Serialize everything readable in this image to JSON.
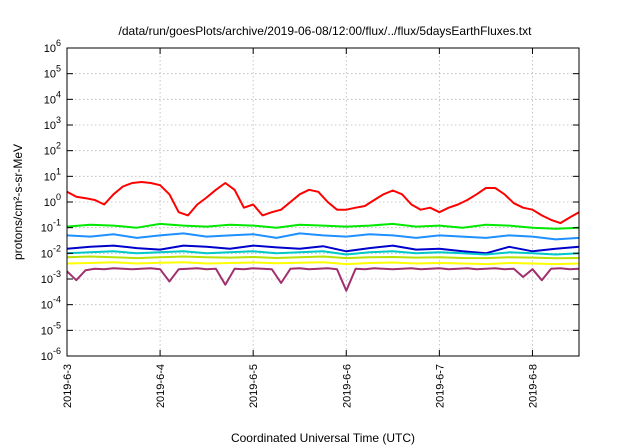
{
  "chart_data": {
    "type": "line",
    "title": "/data/run/goesPlots/archive/2019-06-08/12:00/flux/../flux/5daysEarthFluxes.txt",
    "xlabel": "Coordinated Universal Time (UTC)",
    "ylabel": "protons/cm²-s-sr-MeV",
    "yscale": "log",
    "ylim_exp": [
      -6,
      6
    ],
    "xlim": [
      0,
      5.5
    ],
    "x_ticks": [
      {
        "x": 0,
        "label": "2019-6-3"
      },
      {
        "x": 1,
        "label": "2019-6-4"
      },
      {
        "x": 2,
        "label": "2019-6-5"
      },
      {
        "x": 3,
        "label": "2019-6-6"
      },
      {
        "x": 4,
        "label": "2019-6-7"
      },
      {
        "x": 5,
        "label": "2019-6-8"
      }
    ],
    "grid": true,
    "series": [
      {
        "color": "#ff0000",
        "x": [
          0,
          0.1,
          0.2,
          0.3,
          0.4,
          0.5,
          0.6,
          0.7,
          0.8,
          0.9,
          1.0,
          1.1,
          1.2,
          1.3,
          1.4,
          1.5,
          1.6,
          1.7,
          1.8,
          1.9,
          2.0,
          2.1,
          2.2,
          2.3,
          2.4,
          2.5,
          2.6,
          2.7,
          2.8,
          2.9,
          3.0,
          3.1,
          3.2,
          3.3,
          3.4,
          3.5,
          3.6,
          3.7,
          3.8,
          3.9,
          4.0,
          4.1,
          4.2,
          4.3,
          4.4,
          4.5,
          4.6,
          4.7,
          4.8,
          4.9,
          5.0,
          5.1,
          5.2,
          5.3,
          5.4,
          5.5
        ],
        "y": [
          2.5,
          1.6,
          1.4,
          1.2,
          0.8,
          2.0,
          4.0,
          5.5,
          6.0,
          5.5,
          4.5,
          2.0,
          0.4,
          0.3,
          0.8,
          1.5,
          3.0,
          5.5,
          3.0,
          0.6,
          0.8,
          0.3,
          0.4,
          0.5,
          1.0,
          2.0,
          3.0,
          2.5,
          1.0,
          0.5,
          0.5,
          0.6,
          0.7,
          1.2,
          2.0,
          2.8,
          2.0,
          0.8,
          0.5,
          0.6,
          0.4,
          0.6,
          0.8,
          1.2,
          2.0,
          3.5,
          3.5,
          2.0,
          0.9,
          0.6,
          0.5,
          0.3,
          0.2,
          0.15,
          0.25,
          0.4
        ]
      },
      {
        "color": "#00e800",
        "x": [
          0,
          0.25,
          0.5,
          0.75,
          1.0,
          1.25,
          1.5,
          1.75,
          2.0,
          2.25,
          2.5,
          2.75,
          3.0,
          3.25,
          3.5,
          3.75,
          4.0,
          4.25,
          4.5,
          4.75,
          5.0,
          5.25,
          5.5
        ],
        "y": [
          0.11,
          0.13,
          0.12,
          0.1,
          0.14,
          0.12,
          0.11,
          0.13,
          0.12,
          0.1,
          0.13,
          0.12,
          0.11,
          0.12,
          0.14,
          0.11,
          0.12,
          0.1,
          0.13,
          0.12,
          0.1,
          0.09,
          0.1
        ]
      },
      {
        "color": "#1e90ff",
        "x": [
          0,
          0.25,
          0.5,
          0.75,
          1.0,
          1.25,
          1.5,
          1.75,
          2.0,
          2.25,
          2.5,
          2.75,
          3.0,
          3.25,
          3.5,
          3.75,
          4.0,
          4.25,
          4.5,
          4.75,
          5.0,
          5.25,
          5.5
        ],
        "y": [
          0.05,
          0.045,
          0.055,
          0.04,
          0.05,
          0.06,
          0.045,
          0.05,
          0.055,
          0.04,
          0.06,
          0.05,
          0.045,
          0.055,
          0.05,
          0.04,
          0.05,
          0.045,
          0.04,
          0.05,
          0.045,
          0.035,
          0.04
        ]
      },
      {
        "color": "#0000cd",
        "x": [
          0,
          0.25,
          0.5,
          0.75,
          1.0,
          1.25,
          1.5,
          1.75,
          2.0,
          2.25,
          2.5,
          2.75,
          3.0,
          3.25,
          3.5,
          3.75,
          4.0,
          4.25,
          4.5,
          4.75,
          5.0,
          5.25,
          5.5
        ],
        "y": [
          0.015,
          0.018,
          0.02,
          0.016,
          0.014,
          0.02,
          0.018,
          0.015,
          0.02,
          0.017,
          0.015,
          0.019,
          0.012,
          0.016,
          0.02,
          0.014,
          0.015,
          0.012,
          0.01,
          0.018,
          0.012,
          0.015,
          0.018
        ]
      },
      {
        "color": "#00c8c8",
        "x": [
          0,
          0.25,
          0.5,
          0.75,
          1.0,
          1.25,
          1.5,
          1.75,
          2.0,
          2.25,
          2.5,
          2.75,
          3.0,
          3.25,
          3.5,
          3.75,
          4.0,
          4.25,
          4.5,
          4.75,
          5.0,
          5.25,
          5.5
        ],
        "y": [
          0.01,
          0.011,
          0.012,
          0.01,
          0.011,
          0.012,
          0.01,
          0.011,
          0.012,
          0.01,
          0.011,
          0.012,
          0.009,
          0.011,
          0.012,
          0.01,
          0.011,
          0.01,
          0.009,
          0.011,
          0.01,
          0.009,
          0.01
        ]
      },
      {
        "color": "#b8e000",
        "x": [
          0,
          0.25,
          0.5,
          0.75,
          1.0,
          1.25,
          1.5,
          1.75,
          2.0,
          2.25,
          2.5,
          2.75,
          3.0,
          3.25,
          3.5,
          3.75,
          4.0,
          4.25,
          4.5,
          4.75,
          5.0,
          5.25,
          5.5
        ],
        "y": [
          0.007,
          0.0075,
          0.007,
          0.0065,
          0.007,
          0.0075,
          0.007,
          0.0068,
          0.0072,
          0.0066,
          0.007,
          0.0075,
          0.0065,
          0.007,
          0.0072,
          0.0068,
          0.007,
          0.0066,
          0.0065,
          0.007,
          0.0068,
          0.0064,
          0.0066
        ]
      },
      {
        "color": "#ffff00",
        "x": [
          0,
          0.25,
          0.5,
          0.75,
          1.0,
          1.25,
          1.5,
          1.75,
          2.0,
          2.25,
          2.5,
          2.75,
          3.0,
          3.25,
          3.5,
          3.75,
          4.0,
          4.25,
          4.5,
          4.75,
          5.0,
          5.25,
          5.5
        ],
        "y": [
          0.004,
          0.0042,
          0.0045,
          0.004,
          0.0043,
          0.0045,
          0.004,
          0.0042,
          0.0044,
          0.0041,
          0.0043,
          0.0045,
          0.0038,
          0.0042,
          0.0044,
          0.004,
          0.0042,
          0.004,
          0.0038,
          0.0042,
          0.004,
          0.0038,
          0.004
        ]
      },
      {
        "color": "#a0306e",
        "x": [
          0,
          0.1,
          0.2,
          0.3,
          0.4,
          0.5,
          0.6,
          0.7,
          0.8,
          0.9,
          1.0,
          1.1,
          1.2,
          1.3,
          1.4,
          1.5,
          1.6,
          1.7,
          1.8,
          1.9,
          2.0,
          2.1,
          2.2,
          2.3,
          2.4,
          2.5,
          2.6,
          2.7,
          2.8,
          2.9,
          3.0,
          3.1,
          3.2,
          3.3,
          3.4,
          3.5,
          3.6,
          3.7,
          3.8,
          3.9,
          4.0,
          4.1,
          4.2,
          4.3,
          4.4,
          4.5,
          4.6,
          4.7,
          4.8,
          4.9,
          5.0,
          5.1,
          5.2,
          5.3,
          5.4,
          5.5
        ],
        "y": [
          0.002,
          0.0009,
          0.0022,
          0.0025,
          0.0024,
          0.0026,
          0.0025,
          0.0024,
          0.0025,
          0.0026,
          0.0024,
          0.0008,
          0.0024,
          0.0025,
          0.0026,
          0.0024,
          0.0025,
          0.0006,
          0.0025,
          0.0024,
          0.0026,
          0.0025,
          0.0024,
          0.0007,
          0.0025,
          0.0026,
          0.0024,
          0.0025,
          0.0026,
          0.0024,
          0.00035,
          0.0025,
          0.0024,
          0.0026,
          0.0025,
          0.0024,
          0.0025,
          0.0026,
          0.0024,
          0.0025,
          0.0026,
          0.0024,
          0.0025,
          0.0026,
          0.0024,
          0.0025,
          0.0026,
          0.0024,
          0.0025,
          0.0012,
          0.0024,
          0.0009,
          0.0025,
          0.0026,
          0.0024,
          0.0025
        ]
      }
    ]
  }
}
